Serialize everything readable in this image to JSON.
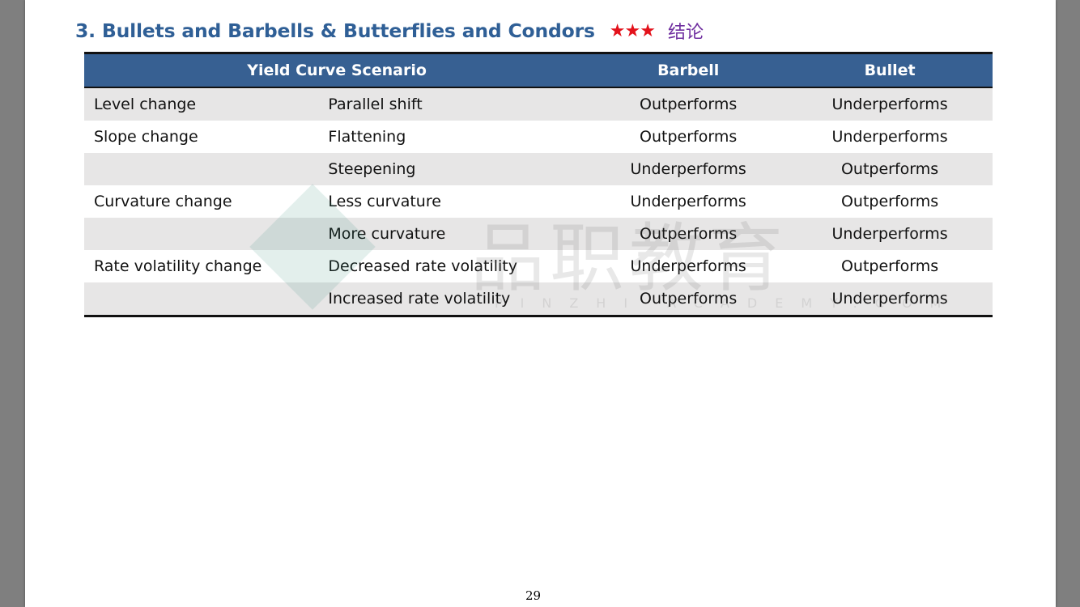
{
  "heading": {
    "title": "3. Bullets and Barbells & Butterflies and Condors",
    "stars": "★★★",
    "tag": "结论"
  },
  "table": {
    "headers": [
      "Yield Curve Scenario",
      "Barbell",
      "Bullet"
    ],
    "rows": [
      {
        "category": "Level change",
        "scenario": "Parallel shift",
        "barbell": "Outperforms",
        "bullet": "Underperforms"
      },
      {
        "category": "Slope change",
        "scenario": "Flattening",
        "barbell": "Outperforms",
        "bullet": "Underperforms"
      },
      {
        "category": "",
        "scenario": "Steepening",
        "barbell": "Underperforms",
        "bullet": "Outperforms"
      },
      {
        "category": "Curvature change",
        "scenario": "Less curvature",
        "barbell": "Underperforms",
        "bullet": "Outperforms"
      },
      {
        "category": "",
        "scenario": "More curvature",
        "barbell": "Outperforms",
        "bullet": "Underperforms"
      },
      {
        "category": "Rate volatility change",
        "scenario": "Decreased rate volatility",
        "barbell": "Underperforms",
        "bullet": "Outperforms"
      },
      {
        "category": "",
        "scenario": "Increased rate volatility",
        "barbell": "Outperforms",
        "bullet": "Underperforms"
      }
    ]
  },
  "watermark": {
    "text": "品职教育",
    "subtext": "PINZHI·ACADEMY.COM"
  },
  "page_number": "29",
  "colors": {
    "heading": "#2f5f96",
    "stars": "#e3121b",
    "tag": "#7030a0",
    "table_header_bg": "#376092",
    "row_shade": "#e7e6e6"
  }
}
